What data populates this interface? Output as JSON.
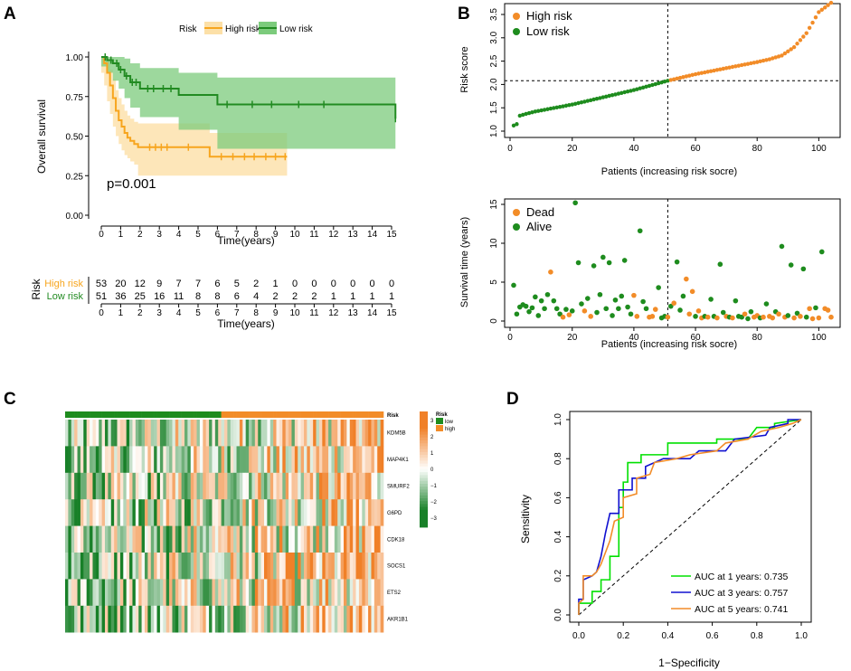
{
  "panel_labels": {
    "a": "A",
    "b": "B",
    "c": "C",
    "d": "D"
  },
  "colors": {
    "high": "#F7A51E",
    "high_fill": "#FCE0A8",
    "low": "#228B22",
    "low_fill": "#7CCB7C",
    "orange": "#F28C28",
    "green": "#1E8C1E",
    "roc1": "#00E000",
    "roc3": "#1010D0",
    "roc5": "#F28C28"
  },
  "chart_data": [
    {
      "id": "km",
      "type": "line",
      "title": "",
      "xlabel": "Time(years)",
      "ylabel": "Overall survival",
      "legend_title": "Risk",
      "legend": [
        "High risk",
        "Low risk"
      ],
      "xlim": [
        0,
        15
      ],
      "ylim": [
        0,
        1
      ],
      "xticks": [
        0,
        1,
        2,
        3,
        4,
        5,
        6,
        7,
        8,
        9,
        10,
        11,
        12,
        13,
        14,
        15
      ],
      "yticks": [
        "0.00",
        "0.25",
        "0.50",
        "0.75",
        "1.00"
      ],
      "pvalue": "p=0.001",
      "series": [
        {
          "name": "High risk",
          "x": [
            0,
            0.15,
            0.3,
            0.45,
            0.6,
            0.75,
            0.9,
            1.05,
            1.2,
            1.35,
            1.5,
            1.7,
            1.9,
            5.6,
            9.6
          ],
          "y": [
            1,
            0.96,
            0.9,
            0.82,
            0.74,
            0.66,
            0.6,
            0.56,
            0.52,
            0.49,
            0.47,
            0.45,
            0.43,
            0.37,
            0.37
          ],
          "lower": [
            1,
            0.9,
            0.82,
            0.72,
            0.64,
            0.56,
            0.5,
            0.45,
            0.41,
            0.38,
            0.36,
            0.34,
            0.32,
            0.25,
            0.25
          ],
          "upper": [
            1,
            1,
            0.98,
            0.92,
            0.86,
            0.79,
            0.74,
            0.7,
            0.66,
            0.63,
            0.61,
            0.59,
            0.58,
            0.52,
            0.52
          ],
          "censor_x": [
            2.5,
            2.8,
            3.1,
            3.4,
            4.5,
            6.2,
            6.8,
            7.4,
            7.9,
            8.5,
            9.0,
            9.5
          ]
        },
        {
          "name": "Low risk",
          "x": [
            0,
            0.3,
            0.6,
            0.9,
            1.2,
            1.5,
            2.0,
            4.0,
            6.0,
            15.2
          ],
          "y": [
            1,
            0.98,
            0.96,
            0.92,
            0.88,
            0.84,
            0.8,
            0.76,
            0.7,
            0.61
          ],
          "lower": [
            1,
            0.94,
            0.9,
            0.85,
            0.8,
            0.74,
            0.68,
            0.62,
            0.54,
            0.42
          ],
          "upper": [
            1,
            1,
            1,
            1,
            0.99,
            0.96,
            0.93,
            0.9,
            0.87,
            0.88
          ],
          "censor_x": [
            0.2,
            0.5,
            0.8,
            1.0,
            1.3,
            1.6,
            1.8,
            2.4,
            2.7,
            3.2,
            3.6,
            6.5,
            7.8,
            8.8,
            10.2,
            11.5,
            15.2
          ]
        }
      ]
    },
    {
      "id": "risktable",
      "type": "table",
      "ylabel": "Risk",
      "xlabel": "Time(years)",
      "rows": [
        {
          "label": "High risk",
          "values": [
            53,
            20,
            12,
            9,
            7,
            7,
            6,
            5,
            2,
            1,
            0,
            0,
            0,
            0,
            0,
            0
          ]
        },
        {
          "label": "Low risk",
          "values": [
            51,
            36,
            25,
            16,
            11,
            8,
            8,
            6,
            4,
            2,
            2,
            2,
            1,
            1,
            1,
            1
          ]
        }
      ],
      "xticks": [
        0,
        1,
        2,
        3,
        4,
        5,
        6,
        7,
        8,
        9,
        10,
        11,
        12,
        13,
        14,
        15
      ]
    },
    {
      "id": "riskscore",
      "type": "scatter",
      "xlabel": "Patients (increasing risk socre)",
      "ylabel": "Risk score",
      "legend": [
        "High risk",
        "Low risk"
      ],
      "xlim": [
        0,
        105
      ],
      "ylim": [
        1.0,
        3.8
      ],
      "xticks": [
        0,
        20,
        40,
        60,
        80,
        100
      ],
      "yticks": [
        "1.0",
        "1.5",
        "2.0",
        "2.5",
        "3.0",
        "3.5"
      ],
      "cutoff_x": 51,
      "cutoff_y": 2.08,
      "n_total": 104,
      "score_anchors": [
        [
          1,
          1.12
        ],
        [
          2,
          1.15
        ],
        [
          3,
          1.33
        ],
        [
          5,
          1.37
        ],
        [
          8,
          1.42
        ],
        [
          20,
          1.57
        ],
        [
          40,
          1.88
        ],
        [
          51,
          2.08
        ],
        [
          60,
          2.22
        ],
        [
          80,
          2.48
        ],
        [
          84,
          2.54
        ],
        [
          88,
          2.62
        ],
        [
          92,
          2.8
        ],
        [
          96,
          3.1
        ],
        [
          100,
          3.55
        ],
        [
          104,
          3.75
        ]
      ]
    },
    {
      "id": "survstatus",
      "type": "scatter",
      "xlabel": "Patients (increasing risk socre)",
      "ylabel": "Survival time (years)",
      "legend": [
        "Dead",
        "Alive"
      ],
      "xlim": [
        0,
        105
      ],
      "ylim": [
        0,
        15.5
      ],
      "xticks": [
        0,
        20,
        40,
        60,
        80,
        100
      ],
      "yticks": [
        "0",
        "5",
        "10",
        "15"
      ],
      "cutoff_x": 51,
      "points": [
        [
          1,
          4.6,
          "a"
        ],
        [
          2,
          0.9,
          "a"
        ],
        [
          3,
          1.8,
          "a"
        ],
        [
          4,
          2.1,
          "a"
        ],
        [
          5,
          1.9,
          "a"
        ],
        [
          6,
          1.2,
          "a"
        ],
        [
          7,
          1.7,
          "a"
        ],
        [
          8,
          3.1,
          "a"
        ],
        [
          9,
          0.7,
          "a"
        ],
        [
          10,
          2.6,
          "a"
        ],
        [
          11,
          1.6,
          "a"
        ],
        [
          12,
          3.4,
          "a"
        ],
        [
          13,
          6.3,
          "d"
        ],
        [
          14,
          2.6,
          "a"
        ],
        [
          15,
          1.6,
          "a"
        ],
        [
          16,
          0.9,
          "a"
        ],
        [
          17,
          0.5,
          "d"
        ],
        [
          18,
          1.5,
          "a"
        ],
        [
          19,
          0.8,
          "d"
        ],
        [
          20,
          1.3,
          "a"
        ],
        [
          21,
          15.2,
          "a"
        ],
        [
          22,
          7.5,
          "a"
        ],
        [
          23,
          2.2,
          "a"
        ],
        [
          24,
          1.3,
          "d"
        ],
        [
          25,
          2.9,
          "a"
        ],
        [
          26,
          0.6,
          "d"
        ],
        [
          27,
          7.1,
          "a"
        ],
        [
          28,
          1.1,
          "a"
        ],
        [
          29,
          3.4,
          "a"
        ],
        [
          30,
          8.2,
          "a"
        ],
        [
          31,
          1.6,
          "a"
        ],
        [
          32,
          7.5,
          "a"
        ],
        [
          33,
          0.7,
          "a"
        ],
        [
          34,
          2.7,
          "a"
        ],
        [
          35,
          1.6,
          "a"
        ],
        [
          36,
          3.2,
          "a"
        ],
        [
          37,
          7.8,
          "a"
        ],
        [
          38,
          1.8,
          "a"
        ],
        [
          39,
          0.9,
          "a"
        ],
        [
          40,
          3.3,
          "d"
        ],
        [
          41,
          0.6,
          "d"
        ],
        [
          42,
          11.6,
          "a"
        ],
        [
          43,
          2.5,
          "a"
        ],
        [
          44,
          1.6,
          "a"
        ],
        [
          45,
          0.5,
          "d"
        ],
        [
          46,
          0.6,
          "d"
        ],
        [
          47,
          1.5,
          "d"
        ],
        [
          48,
          4.3,
          "a"
        ],
        [
          49,
          0.4,
          "a"
        ],
        [
          50,
          0.6,
          "a"
        ],
        [
          51,
          0.5,
          "d"
        ],
        [
          52,
          1.9,
          "a"
        ],
        [
          53,
          2.3,
          "d"
        ],
        [
          54,
          7.6,
          "a"
        ],
        [
          55,
          1.4,
          "a"
        ],
        [
          56,
          3.2,
          "a"
        ],
        [
          57,
          5.4,
          "d"
        ],
        [
          58,
          0.9,
          "d"
        ],
        [
          59,
          3.8,
          "d"
        ],
        [
          60,
          0.6,
          "a"
        ],
        [
          61,
          1.3,
          "d"
        ],
        [
          62,
          0.4,
          "d"
        ],
        [
          63,
          0.6,
          "a"
        ],
        [
          64,
          0.5,
          "d"
        ],
        [
          65,
          2.8,
          "a"
        ],
        [
          66,
          0.6,
          "a"
        ],
        [
          67,
          0.4,
          "d"
        ],
        [
          68,
          7.3,
          "a"
        ],
        [
          69,
          1.1,
          "a"
        ],
        [
          70,
          0.6,
          "d"
        ],
        [
          71,
          0.5,
          "a"
        ],
        [
          72,
          0.4,
          "d"
        ],
        [
          73,
          2.6,
          "a"
        ],
        [
          74,
          0.6,
          "a"
        ],
        [
          75,
          0.5,
          "a"
        ],
        [
          76,
          0.9,
          "d"
        ],
        [
          77,
          0.3,
          "a"
        ],
        [
          78,
          1.2,
          "a"
        ],
        [
          79,
          0.5,
          "d"
        ],
        [
          80,
          0.7,
          "d"
        ],
        [
          81,
          0.4,
          "a"
        ],
        [
          82,
          0.5,
          "d"
        ],
        [
          83,
          2.2,
          "a"
        ],
        [
          84,
          0.6,
          "d"
        ],
        [
          85,
          0.4,
          "d"
        ],
        [
          86,
          1.2,
          "a"
        ],
        [
          87,
          0.9,
          "d"
        ],
        [
          88,
          9.6,
          "a"
        ],
        [
          89,
          0.5,
          "d"
        ],
        [
          90,
          0.7,
          "a"
        ],
        [
          91,
          7.2,
          "a"
        ],
        [
          92,
          0.4,
          "d"
        ],
        [
          93,
          1.0,
          "a"
        ],
        [
          94,
          0.6,
          "d"
        ],
        [
          95,
          6.7,
          "a"
        ],
        [
          96,
          0.5,
          "a"
        ],
        [
          97,
          1.6,
          "d"
        ],
        [
          98,
          0.3,
          "d"
        ],
        [
          99,
          1.7,
          "a"
        ],
        [
          100,
          0.4,
          "d"
        ],
        [
          101,
          8.9,
          "a"
        ],
        [
          102,
          1.6,
          "d"
        ],
        [
          103,
          1.4,
          "d"
        ],
        [
          104,
          0.5,
          "d"
        ]
      ]
    },
    {
      "id": "heatmap",
      "type": "heatmap",
      "rows": [
        "KDM5B",
        "MAP4K1",
        "SMURF2",
        "G6PD",
        "CDK18",
        "SOCS1",
        "ETS2",
        "AKR1B1"
      ],
      "annotation_label": "Risk",
      "annotation_legend": [
        "low",
        "high"
      ],
      "n_low": 51,
      "n_high": 53,
      "scale_ticks": [
        "3",
        "2",
        "1",
        "0",
        "−1",
        "−2",
        "−3"
      ],
      "value_range": [
        -3,
        3
      ]
    },
    {
      "id": "roc",
      "type": "line",
      "xlabel": "1−Specificity",
      "ylabel": "Sensitivity",
      "xlim": [
        0,
        1
      ],
      "ylim": [
        0,
        1
      ],
      "xticks": [
        "0.0",
        "0.2",
        "0.4",
        "0.6",
        "0.8",
        "1.0"
      ],
      "yticks": [
        "0.0",
        "0.2",
        "0.4",
        "0.6",
        "0.8",
        "1.0"
      ],
      "series": [
        {
          "name": "AUC at 1 years: 0.735",
          "points": [
            [
              0,
              0
            ],
            [
              0,
              0.06
            ],
            [
              0.06,
              0.06
            ],
            [
              0.06,
              0.12
            ],
            [
              0.1,
              0.12
            ],
            [
              0.1,
              0.18
            ],
            [
              0.14,
              0.18
            ],
            [
              0.14,
              0.3
            ],
            [
              0.18,
              0.3
            ],
            [
              0.18,
              0.55
            ],
            [
              0.2,
              0.55
            ],
            [
              0.2,
              0.68
            ],
            [
              0.22,
              0.68
            ],
            [
              0.22,
              0.78
            ],
            [
              0.28,
              0.78
            ],
            [
              0.28,
              0.82
            ],
            [
              0.4,
              0.82
            ],
            [
              0.4,
              0.88
            ],
            [
              0.62,
              0.88
            ],
            [
              0.62,
              0.9
            ],
            [
              0.76,
              0.9
            ],
            [
              0.8,
              0.96
            ],
            [
              0.88,
              0.96
            ],
            [
              0.88,
              0.98
            ],
            [
              1,
              1
            ]
          ]
        },
        {
          "name": "AUC at 3 years: 0.757",
          "points": [
            [
              0,
              0
            ],
            [
              0,
              0.08
            ],
            [
              0.02,
              0.08
            ],
            [
              0.02,
              0.18
            ],
            [
              0.06,
              0.2
            ],
            [
              0.08,
              0.22
            ],
            [
              0.1,
              0.3
            ],
            [
              0.12,
              0.42
            ],
            [
              0.14,
              0.52
            ],
            [
              0.18,
              0.52
            ],
            [
              0.18,
              0.64
            ],
            [
              0.24,
              0.64
            ],
            [
              0.24,
              0.7
            ],
            [
              0.3,
              0.7
            ],
            [
              0.3,
              0.76
            ],
            [
              0.38,
              0.8
            ],
            [
              0.5,
              0.8
            ],
            [
              0.54,
              0.84
            ],
            [
              0.66,
              0.84
            ],
            [
              0.7,
              0.9
            ],
            [
              0.84,
              0.92
            ],
            [
              0.86,
              0.96
            ],
            [
              0.94,
              0.98
            ],
            [
              0.94,
              1
            ],
            [
              1,
              1
            ]
          ]
        },
        {
          "name": "AUC at 5 years: 0.741",
          "points": [
            [
              0,
              0
            ],
            [
              0,
              0.06
            ],
            [
              0.02,
              0.08
            ],
            [
              0.02,
              0.2
            ],
            [
              0.06,
              0.2
            ],
            [
              0.08,
              0.22
            ],
            [
              0.1,
              0.26
            ],
            [
              0.14,
              0.38
            ],
            [
              0.16,
              0.48
            ],
            [
              0.2,
              0.5
            ],
            [
              0.2,
              0.6
            ],
            [
              0.26,
              0.62
            ],
            [
              0.26,
              0.7
            ],
            [
              0.32,
              0.72
            ],
            [
              0.34,
              0.78
            ],
            [
              0.44,
              0.8
            ],
            [
              0.5,
              0.82
            ],
            [
              0.62,
              0.84
            ],
            [
              0.66,
              0.88
            ],
            [
              0.76,
              0.9
            ],
            [
              0.82,
              0.94
            ],
            [
              0.9,
              0.96
            ],
            [
              0.96,
              0.98
            ],
            [
              1,
              1
            ]
          ]
        }
      ]
    }
  ]
}
